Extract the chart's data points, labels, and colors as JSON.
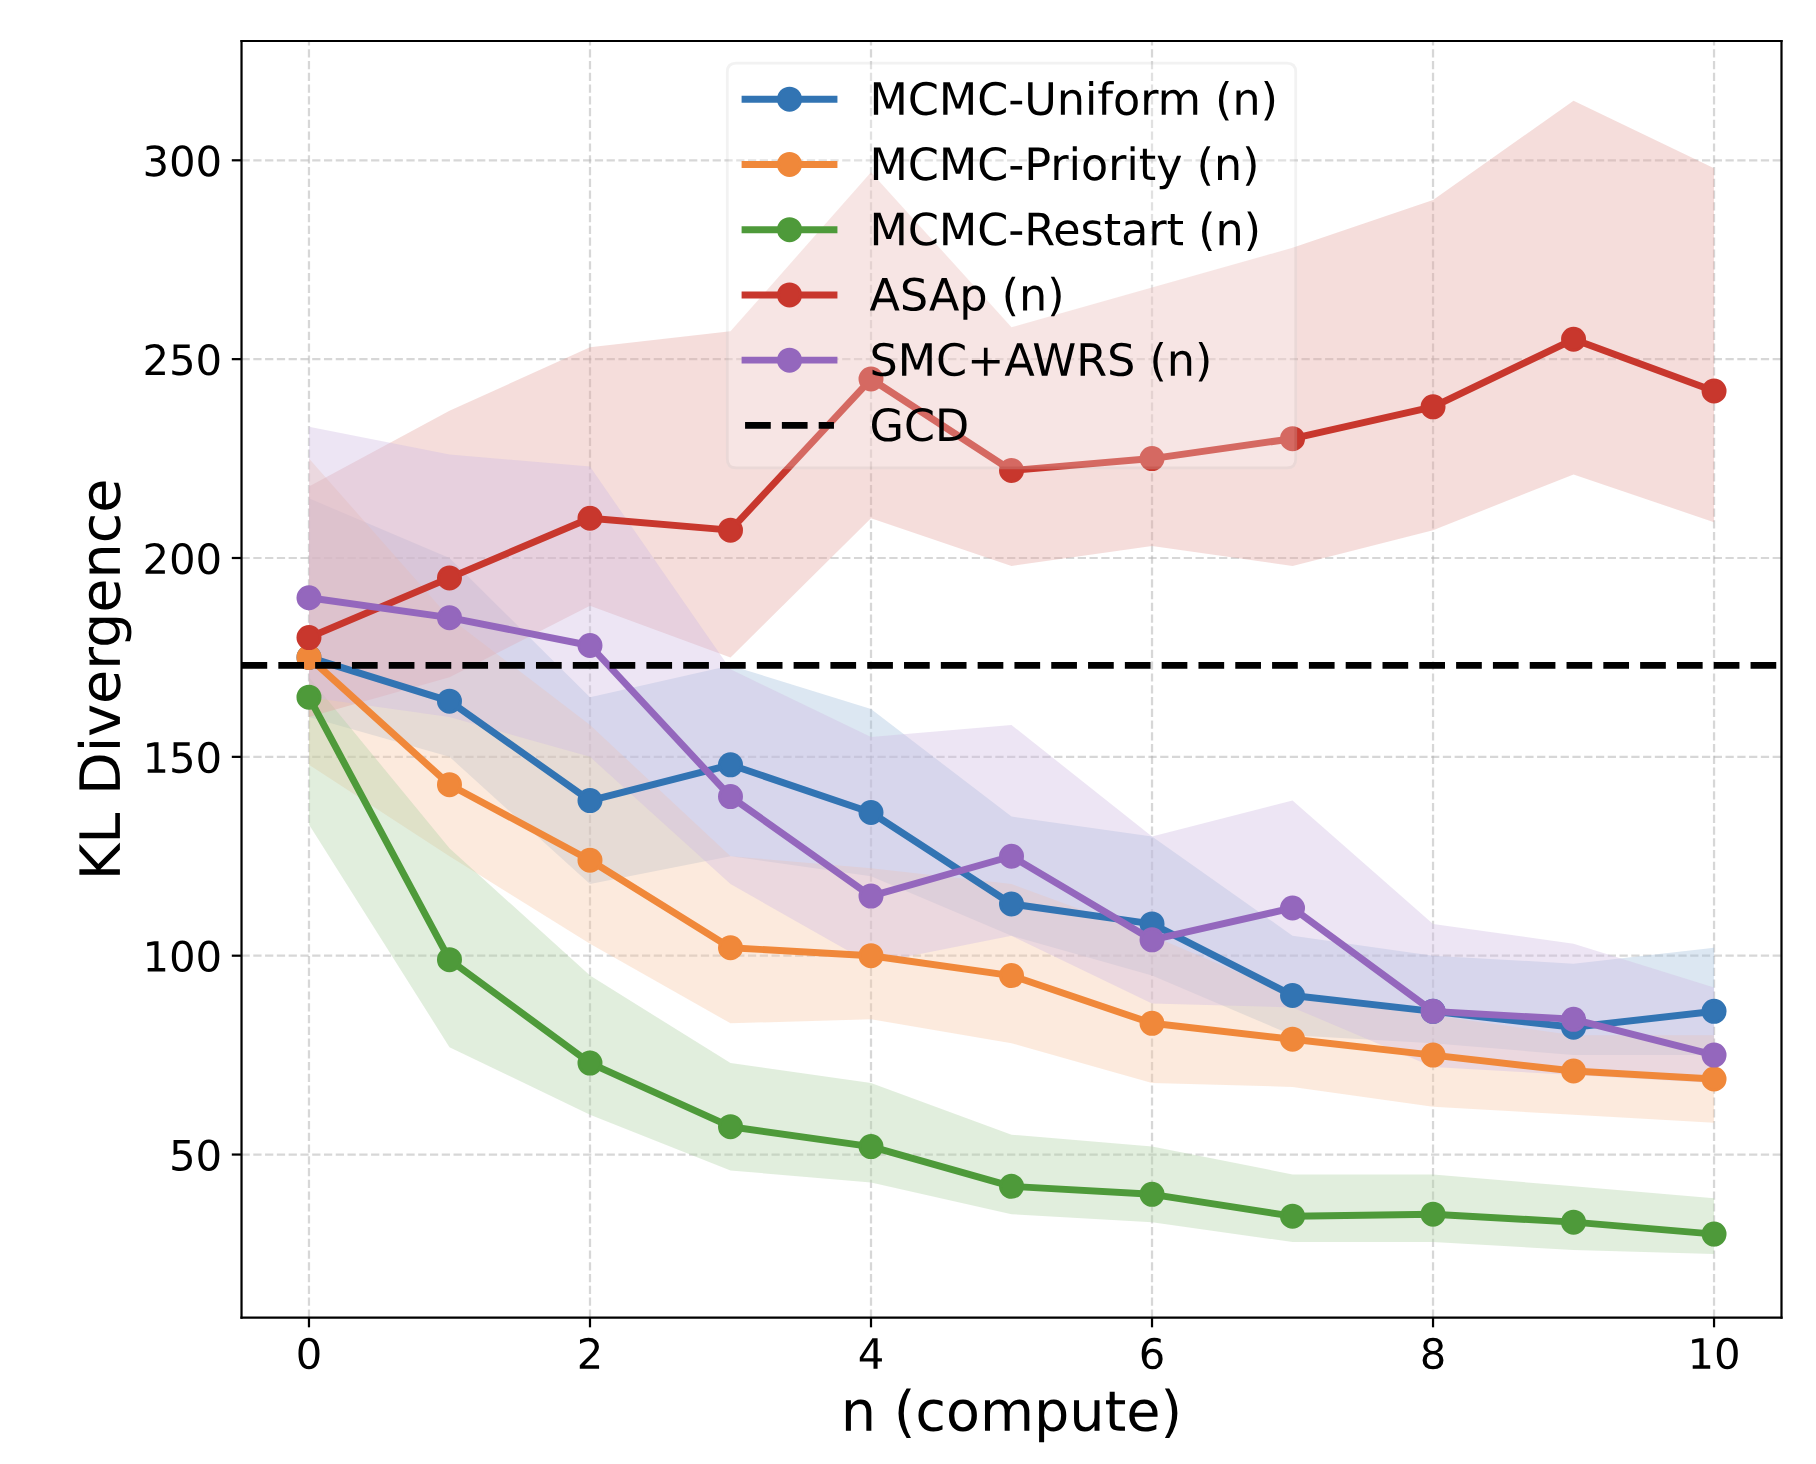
{
  "chart_data": {
    "type": "line",
    "xlabel": "n (compute)",
    "ylabel": "KL Divergence",
    "x": [
      0,
      1,
      2,
      3,
      4,
      5,
      6,
      7,
      8,
      9,
      10
    ],
    "xlim": [
      -0.48,
      10.48
    ],
    "xticks": [
      0,
      2,
      4,
      6,
      8,
      10
    ],
    "ylim": [
      9,
      330
    ],
    "yticks": [
      50,
      100,
      150,
      200,
      250,
      300
    ],
    "grid": true,
    "legend": "top",
    "marker": "circle",
    "line_style": "solid",
    "series": [
      {
        "name": "MCMC-Uniform (n)",
        "color": "#3274b3",
        "values": [
          175,
          164,
          139,
          148,
          136,
          113,
          108,
          90,
          86,
          82,
          86
        ],
        "lower": [
          160,
          150,
          118,
          125,
          120,
          105,
          95,
          80,
          78,
          75,
          75
        ],
        "upper": [
          215,
          200,
          165,
          173,
          162,
          135,
          130,
          105,
          100,
          98,
          102
        ]
      },
      {
        "name": "MCMC-Priority (n)",
        "color": "#f0883a",
        "values": [
          175,
          143,
          124,
          102,
          100,
          95,
          83,
          79,
          75,
          71,
          69
        ],
        "lower": [
          148,
          125,
          103,
          83,
          84,
          78,
          68,
          67,
          62,
          60,
          58
        ],
        "upper": [
          225,
          185,
          158,
          125,
          122,
          118,
          105,
          90,
          85,
          80,
          80
        ]
      },
      {
        "name": "MCMC-Restart (n)",
        "color": "#4e9a3a",
        "values": [
          165,
          99,
          73,
          57,
          52,
          42,
          40,
          34.5,
          35,
          33,
          30
        ],
        "lower": [
          133,
          77,
          60,
          46,
          43,
          35,
          33,
          28,
          28,
          26,
          25
        ],
        "upper": [
          170,
          127,
          95,
          73,
          68,
          55,
          52,
          45,
          45,
          42,
          39
        ]
      },
      {
        "name": "ASAp (n)",
        "color": "#c8372d",
        "values": [
          180,
          195,
          210,
          207,
          245,
          222,
          225,
          230,
          238,
          255,
          242
        ],
        "lower": [
          160,
          170,
          188,
          175,
          210,
          198,
          203,
          198,
          207,
          221,
          209
        ],
        "upper": [
          218,
          237,
          253,
          257,
          297,
          258,
          268,
          278,
          290,
          315,
          298
        ]
      },
      {
        "name": "SMC+AWRS (n)",
        "color": "#9467bd",
        "values": [
          190,
          185,
          178,
          140,
          115,
          125,
          104,
          112,
          86,
          84,
          75
        ],
        "lower": [
          165,
          160,
          150,
          118,
          98,
          105,
          88,
          87,
          72,
          70,
          68
        ],
        "upper": [
          233,
          226,
          223,
          172,
          155,
          158,
          130,
          139,
          108,
          103,
          92
        ]
      }
    ],
    "ref_lines": [
      {
        "axis": "y",
        "value": 173,
        "label": "GCD",
        "color": "#000000",
        "line_style": "dashed"
      }
    ]
  }
}
